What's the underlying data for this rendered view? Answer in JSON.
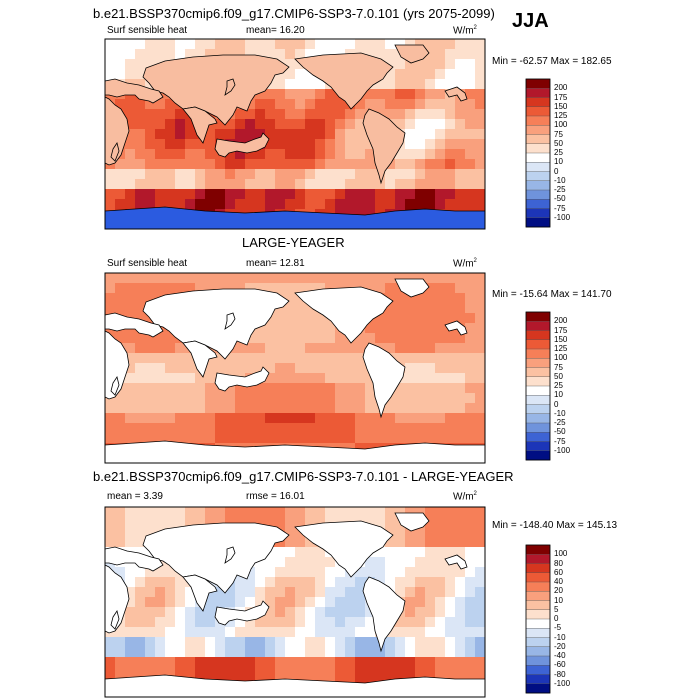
{
  "header": {
    "title": "b.e21.BSSP370cmip6.f09_g17.CMIP6-SSP3-7.0.101 (yrs 2075-2099)",
    "season": "JJA"
  },
  "chart_data": [
    {
      "type": "heatmap",
      "title": "b.e21.BSSP370cmip6.f09_g17.CMIP6-SSP3-7.0.101 (yrs 2075-2099)",
      "left_label": "Surf sensible heat",
      "center_label": "mean=  16.20",
      "unit_base": "W/m",
      "unit_exp": "2",
      "min_text": "Min = -62.57 Max = 182.65",
      "colorbar_labels": [
        "200",
        "175",
        "150",
        "125",
        "100",
        "75",
        "50",
        "25",
        "10",
        "0",
        "-10",
        "-25",
        "-50",
        "-75",
        "-100"
      ],
      "colorbar_colors": [
        "#7f0000",
        "#b2182b",
        "#d6361f",
        "#ec5a36",
        "#f67f58",
        "#f9a07d",
        "#fbc1a2",
        "#fde0cd",
        "#ffffff",
        "#dbe6f6",
        "#bcd2ef",
        "#98b6e6",
        "#6f93dc",
        "#3d63d4",
        "#1c35b8",
        "#000e83"
      ]
    },
    {
      "type": "heatmap",
      "title": "LARGE-YEAGER",
      "left_label": "Surf sensible heat",
      "center_label": "mean=  12.81",
      "unit_base": "W/m",
      "unit_exp": "2",
      "min_text": "Min = -15.64 Max = 141.70",
      "colorbar_labels": [
        "200",
        "175",
        "150",
        "125",
        "100",
        "75",
        "50",
        "25",
        "10",
        "0",
        "-10",
        "-25",
        "-50",
        "-75",
        "-100"
      ],
      "colorbar_colors": [
        "#7f0000",
        "#b2182b",
        "#d6361f",
        "#ec5a36",
        "#f67f58",
        "#f9a07d",
        "#fbc1a2",
        "#fde0cd",
        "#ffffff",
        "#dbe6f6",
        "#bcd2ef",
        "#98b6e6",
        "#6f93dc",
        "#3d63d4",
        "#1c35b8",
        "#000e83"
      ]
    },
    {
      "type": "heatmap",
      "title": "b.e21.BSSP370cmip6.f09_g17.CMIP6-SSP3-7.0.101 - LARGE-YEAGER",
      "left_label": "mean =   3.39",
      "center_label": "rmse =  16.01",
      "unit_base": "W/m",
      "unit_exp": "2",
      "min_text": "Min = -148.40 Max = 145.13",
      "colorbar_labels": [
        "100",
        "80",
        "60",
        "40",
        "20",
        "10",
        "5",
        "0",
        "-5",
        "-10",
        "-20",
        "-40",
        "-60",
        "-80",
        "-100"
      ],
      "colorbar_colors": [
        "#7f0000",
        "#b2182b",
        "#d6361f",
        "#ec5a36",
        "#f67f58",
        "#f9a07d",
        "#fbc1a2",
        "#fde0cd",
        "#ffffff",
        "#dbe6f6",
        "#bcd2ef",
        "#98b6e6",
        "#6f93dc",
        "#3d63d4",
        "#1c35b8",
        "#000e83"
      ]
    }
  ]
}
